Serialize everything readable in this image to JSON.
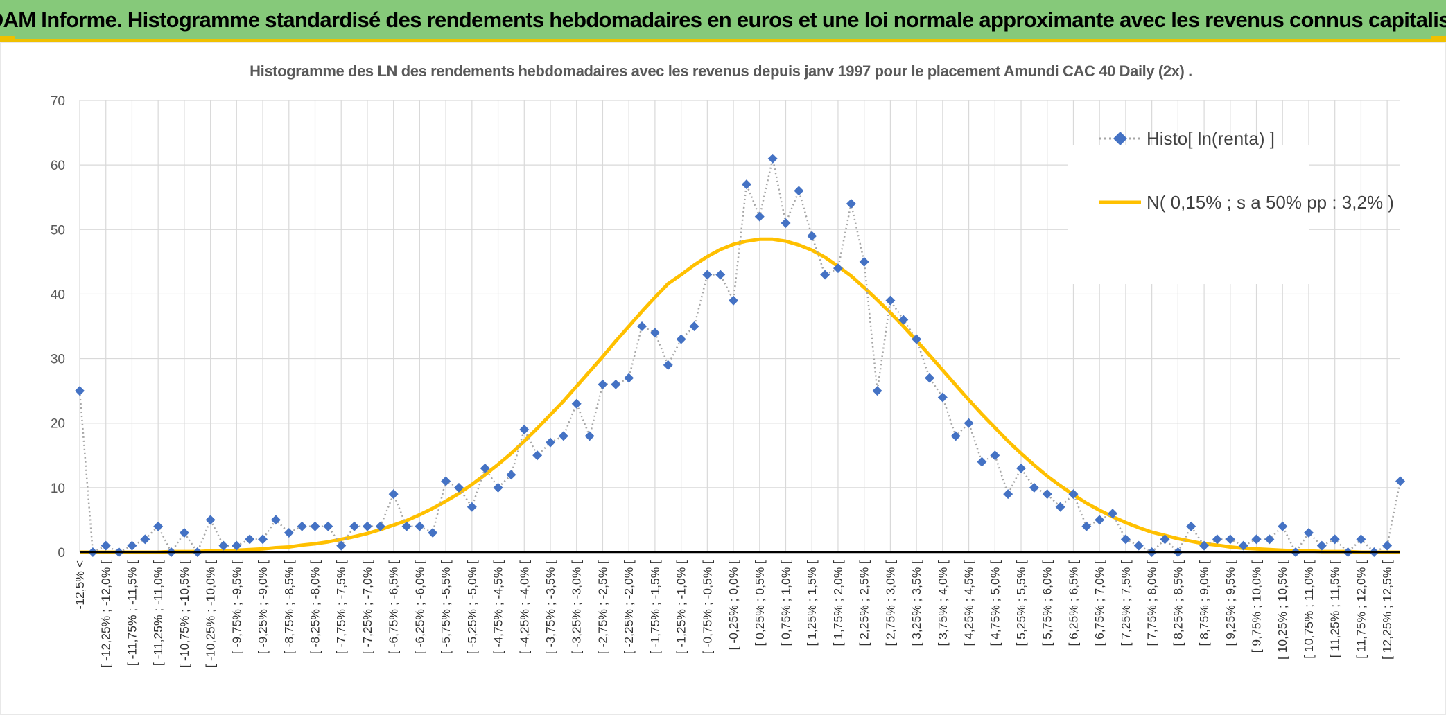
{
  "header": {
    "title": "ADAM Informe. Histogramme standardisé des rendements hebdomadaires en euros et une loi normale approximante avec les revenus connus capitalisés"
  },
  "colors": {
    "banner": "#86c97a",
    "accent": "#f0c000",
    "histo_marker": "#4472c4",
    "histo_line": "#a6a6a6",
    "normal_line": "#ffc000"
  },
  "chart_data": {
    "type": "line",
    "title": "Histogramme des LN des rendements hebdomadaires avec les revenus depuis janv 1997 pour le placement Amundi CAC 40 Daily (2x) .",
    "xlabel": "",
    "ylabel": "",
    "ylim": [
      0,
      70
    ],
    "yticks": [
      0,
      10,
      20,
      30,
      40,
      50,
      60,
      70
    ],
    "grid": true,
    "legend_position": "top-right",
    "categories": [
      "-12,5% <",
      "[ -12,5% ; -12,25% [",
      "[ -12,25% ; -12,0% [",
      "[ -12,0% ; -11,75% [",
      "[ -11,75% ; -11,5% [",
      "[ -11,5% ; -11,25% [",
      "[ -11,25% ; -11,0% [",
      "[ -11,0% ; -10,75% [",
      "[ -10,75% ; -10,5% [",
      "[ -10,5% ; -10,25% [",
      "[ -10,25% ; -10,0% [",
      "[ -10,0% ; -9,75% [",
      "[ -9,75% ; -9,5% [",
      "[ -9,5% ; -9,25% [",
      "[ -9,25% ; -9,0% [",
      "[ -9,0% ; -8,75% [",
      "[ -8,75% ; -8,5% [",
      "[ -8,5% ; -8,25% [",
      "[ -8,25% ; -8,0% [",
      "[ -8,0% ; -7,75% [",
      "[ -7,75% ; -7,5% [",
      "[ -7,5% ; -7,25% [",
      "[ -7,25% ; -7,0% [",
      "[ -7,0% ; -6,75% [",
      "[ -6,75% ; -6,5% [",
      "[ -6,5% ; -6,25% [",
      "[ -6,25% ; -6,0% [",
      "[ -6,0% ; -5,75% [",
      "[ -5,75% ; -5,5% [",
      "[ -5,5% ; -5,25% [",
      "[ -5,25% ; -5,0% [",
      "[ -5,0% ; -4,75% [",
      "[ -4,75% ; -4,5% [",
      "[ -4,5% ; -4,25% [",
      "[ -4,25% ; -4,0% [",
      "[ -4,0% ; -3,75% [",
      "[ -3,75% ; -3,5% [",
      "[ -3,5% ; -3,25% [",
      "[ -3,25% ; -3,0% [",
      "[ -3,0% ; -2,75% [",
      "[ -2,75% ; -2,5% [",
      "[ -2,5% ; -2,25% [",
      "[ -2,25% ; -2,0% [",
      "[ -2,0% ; -1,75% [",
      "[ -1,75% ; -1,5% [",
      "[ -1,5% ; -1,25% [",
      "[ -1,25% ; -1,0% [",
      "[ -1,0% ; -0,75% [",
      "[ -0,75% ; -0,5% [",
      "[ -0,5% ; -0,25% [",
      "[ -0,25% ; 0,0% [",
      "[ 0,0% ; 0,25% [",
      "[ 0,25% ; 0,5% [",
      "[ 0,5% ; 0,75% [",
      "[ 0,75% ; 1,0% [",
      "[ 1,0% ; 1,25% [",
      "[ 1,25% ; 1,5% [",
      "[ 1,5% ; 1,75% [",
      "[ 1,75% ; 2,0% [",
      "[ 2,0% ; 2,25% [",
      "[ 2,25% ; 2,5% [",
      "[ 2,5% ; 2,75% [",
      "[ 2,75% ; 3,0% [",
      "[ 3,0% ; 3,25% [",
      "[ 3,25% ; 3,5% [",
      "[ 3,5% ; 3,75% [",
      "[ 3,75% ; 4,0% [",
      "[ 4,0% ; 4,25% [",
      "[ 4,25% ; 4,5% [",
      "[ 4,5% ; 4,75% [",
      "[ 4,75% ; 5,0% [",
      "[ 5,0% ; 5,25% [",
      "[ 5,25% ; 5,5% [",
      "[ 5,5% ; 5,75% [",
      "[ 5,75% ; 6,0% [",
      "[ 6,0% ; 6,25% [",
      "[ 6,25% ; 6,5% [",
      "[ 6,5% ; 6,75% [",
      "[ 6,75% ; 7,0% [",
      "[ 7,0% ; 7,25% [",
      "[ 7,25% ; 7,5% [",
      "[ 7,5% ; 7,75% [",
      "[ 7,75% ; 8,0% [",
      "[ 8,0% ; 8,25% [",
      "[ 8,25% ; 8,5% [",
      "[ 8,5% ; 8,75% [",
      "[ 8,75% ; 9,0% [",
      "[ 9,0% ; 9,25% [",
      "[ 9,25% ; 9,5% [",
      "[ 9,5% ; 9,75% [",
      "[ 9,75% ; 10,0% [",
      "[ 10,0% ; 10,25% [",
      "[ 10,25% ; 10,5% [",
      "[ 10,5% ; 10,75% [",
      "[ 10,75% ; 11,0% [",
      "[ 11,0% ; 11,25% [",
      "[ 11,25% ; 11,5% [",
      "[ 11,5% ; 11,75% [",
      "[ 11,75% ; 12,0% [",
      "[ 12,0% ; 12,25% [",
      "[ 12,25% ; 12,5% [",
      "12,5% >"
    ],
    "series": [
      {
        "name": "Histo[ ln(renta) ]",
        "style": "dotted-line-diamond-markers",
        "values": [
          25,
          0,
          1,
          0,
          1,
          2,
          4,
          0,
          3,
          0,
          5,
          1,
          1,
          2,
          2,
          5,
          3,
          4,
          4,
          4,
          1,
          4,
          4,
          4,
          9,
          4,
          4,
          3,
          11,
          10,
          7,
          13,
          10,
          12,
          19,
          15,
          17,
          18,
          23,
          18,
          26,
          26,
          27,
          35,
          34,
          29,
          33,
          35,
          43,
          43,
          39,
          57,
          52,
          61,
          51,
          56,
          49,
          43,
          44,
          54,
          45,
          25,
          39,
          36,
          33,
          27,
          24,
          18,
          20,
          14,
          15,
          9,
          13,
          10,
          9,
          7,
          9,
          4,
          5,
          6,
          2,
          1,
          0,
          2,
          0,
          4,
          1,
          2,
          2,
          1,
          2,
          2,
          4,
          0,
          3,
          1,
          2,
          0,
          2,
          0,
          1,
          11
        ]
      },
      {
        "name": "N( 0,15% ; s a 50% pp : 3,2% )",
        "style": "solid-line",
        "values": [
          0.0,
          0.0,
          0.0,
          0.0,
          0.0,
          0.0,
          0.0,
          0.1,
          0.1,
          0.1,
          0.2,
          0.2,
          0.3,
          0.4,
          0.5,
          0.7,
          0.8,
          1.1,
          1.3,
          1.6,
          2.0,
          2.4,
          2.9,
          3.5,
          4.2,
          4.9,
          5.8,
          6.8,
          7.9,
          9.1,
          10.5,
          12.0,
          13.6,
          15.3,
          17.2,
          19.2,
          21.3,
          23.4,
          25.7,
          28.0,
          30.3,
          32.7,
          35.0,
          37.3,
          39.5,
          41.6,
          43.0,
          44.5,
          45.8,
          46.9,
          47.7,
          48.2,
          48.5,
          48.5,
          48.2,
          47.6,
          46.8,
          45.7,
          44.3,
          42.8,
          41.0,
          39.1,
          37.1,
          35.0,
          32.8,
          30.5,
          28.2,
          25.9,
          23.6,
          21.4,
          19.3,
          17.2,
          15.3,
          13.5,
          11.8,
          10.3,
          8.9,
          7.6,
          6.5,
          5.5,
          4.6,
          3.8,
          3.1,
          2.6,
          2.1,
          1.7,
          1.3,
          1.1,
          0.8,
          0.6,
          0.5,
          0.4,
          0.3,
          0.2,
          0.2,
          0.1,
          0.1,
          0.1,
          0.0,
          0.0,
          0.0,
          0.0
        ]
      }
    ]
  }
}
